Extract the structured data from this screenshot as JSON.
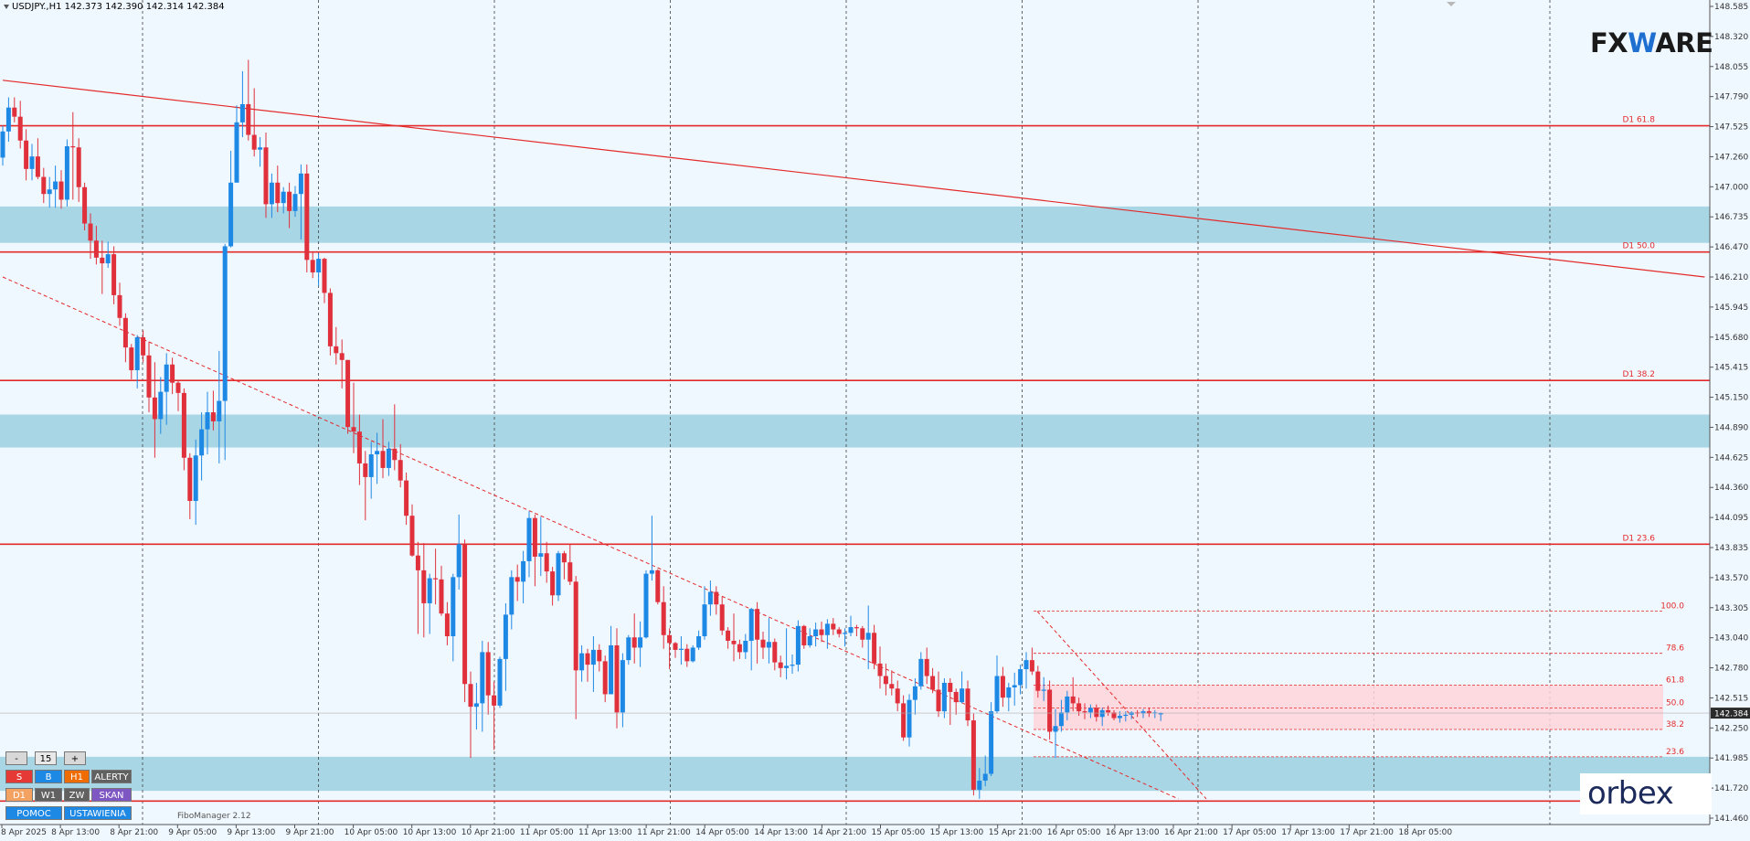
{
  "header": {
    "title": "USDJPY.,H1  142.373 142.390 142.314 142.384"
  },
  "branding": {
    "logo_left": "FX",
    "logo_w": "W",
    "logo_right": "ARE",
    "orbex": "orbex"
  },
  "indicator_label": "FiboManager 2.12",
  "controls": {
    "minus": "-",
    "value": "15",
    "plus": "+",
    "s": "S",
    "b": "B",
    "h1": "H1",
    "alerty": "ALERTY",
    "d1": "D1",
    "w1": "W1",
    "zw": "ZW",
    "skan": "SKAN",
    "pomoc": "POMOC",
    "ustawienia": "USTAWIENIA"
  },
  "colors": {
    "background": "#f0f8ff",
    "bull": "#1e88e5",
    "bear": "#e0303c",
    "zone": "#a9d6e5",
    "level": "#e32a2a",
    "fib_zone": "#ffd4da",
    "grid": "#404040"
  },
  "chart_data": {
    "type": "candlestick",
    "symbol": "USDJPY.",
    "timeframe": "H1",
    "ylim": [
      141.46,
      148.6
    ],
    "y_ticks": [
      "148.585",
      "148.320",
      "148.055",
      "147.790",
      "147.525",
      "147.260",
      "147.000",
      "146.735",
      "146.470",
      "146.210",
      "145.945",
      "145.680",
      "145.415",
      "145.150",
      "144.890",
      "144.625",
      "144.360",
      "144.095",
      "143.835",
      "143.570",
      "143.305",
      "143.040",
      "142.780",
      "142.515",
      "142.250",
      "141.985",
      "141.720",
      "141.460"
    ],
    "x_labels": [
      "8 Apr 2025",
      "8 Apr 13:00",
      "8 Apr 21:00",
      "9 Apr 05:00",
      "9 Apr 13:00",
      "9 Apr 21:00",
      "10 Apr 05:00",
      "10 Apr 13:00",
      "10 Apr 21:00",
      "11 Apr 05:00",
      "11 Apr 13:00",
      "11 Apr 21:00",
      "14 Apr 05:00",
      "14 Apr 13:00",
      "14 Apr 21:00",
      "15 Apr 05:00",
      "15 Apr 13:00",
      "15 Apr 21:00",
      "16 Apr 05:00",
      "16 Apr 13:00",
      "16 Apr 21:00",
      "17 Apr 05:00",
      "17 Apr 13:00",
      "17 Apr 21:00",
      "18 Apr 05:00"
    ],
    "current_price": "142.384",
    "d1_levels": [
      {
        "label": "D1 61.8",
        "price": 147.55
      },
      {
        "label": "D1 50.0",
        "price": 146.44
      },
      {
        "label": "D1 38.2",
        "price": 145.31
      },
      {
        "label": "D1 23.6",
        "price": 143.87
      },
      {
        "label": "",
        "price": 141.61
      }
    ],
    "support_zones": [
      {
        "from": 146.52,
        "to": 146.84
      },
      {
        "from": 144.72,
        "to": 145.01
      },
      {
        "from": 141.7,
        "to": 142.0
      }
    ],
    "fib_retracement": [
      {
        "label": "100.0",
        "price": 143.28
      },
      {
        "label": "78.6",
        "price": 142.91
      },
      {
        "label": "61.8",
        "price": 142.63
      },
      {
        "label": "50.0",
        "price": 142.43
      },
      {
        "label": "38.2",
        "price": 142.24
      },
      {
        "label": "23.6",
        "price": 142.0
      }
    ],
    "trendlines": [
      {
        "style": "solid",
        "from": [
          0,
          147.95
        ],
        "to": [
          291,
          146.22
        ]
      },
      {
        "style": "dashed",
        "from": [
          0,
          146.22
        ],
        "to": [
          201,
          141.63
        ]
      }
    ],
    "candles": [
      [
        147.27,
        147.55,
        147.2,
        147.5
      ],
      [
        147.5,
        147.8,
        147.41,
        147.71
      ],
      [
        147.71,
        147.8,
        147.58,
        147.63
      ],
      [
        147.63,
        147.77,
        147.35,
        147.42
      ],
      [
        147.42,
        147.52,
        147.07,
        147.17
      ],
      [
        147.17,
        147.39,
        147.07,
        147.28
      ],
      [
        147.28,
        147.44,
        147.08,
        147.1
      ],
      [
        147.1,
        147.18,
        146.87,
        146.95
      ],
      [
        146.95,
        147.1,
        146.83,
        146.99
      ],
      [
        146.99,
        147.2,
        146.83,
        147.06
      ],
      [
        147.06,
        147.16,
        146.82,
        146.9
      ],
      [
        146.9,
        147.43,
        146.84,
        147.37
      ],
      [
        147.37,
        147.67,
        146.9,
        147.36
      ],
      [
        147.36,
        147.44,
        146.88,
        147.01
      ],
      [
        147.01,
        147.05,
        146.63,
        146.69
      ],
      [
        146.69,
        146.78,
        146.38,
        146.54
      ],
      [
        146.54,
        146.67,
        146.33,
        146.39
      ],
      [
        146.39,
        146.54,
        146.07,
        146.34
      ],
      [
        146.34,
        146.53,
        146.3,
        146.42
      ],
      [
        146.42,
        146.49,
        145.98,
        146.06
      ],
      [
        146.06,
        146.17,
        145.79,
        145.86
      ],
      [
        145.86,
        145.9,
        145.47,
        145.6
      ],
      [
        145.6,
        145.63,
        145.32,
        145.4
      ],
      [
        145.4,
        145.71,
        145.24,
        145.69
      ],
      [
        145.69,
        145.75,
        145.47,
        145.53
      ],
      [
        145.53,
        145.65,
        145.03,
        145.16
      ],
      [
        145.16,
        145.47,
        144.63,
        144.97
      ],
      [
        144.97,
        145.34,
        144.84,
        145.21
      ],
      [
        145.21,
        145.55,
        144.92,
        145.45
      ],
      [
        145.45,
        145.51,
        145.19,
        145.29
      ],
      [
        145.29,
        145.31,
        145.04,
        145.2
      ],
      [
        145.2,
        145.24,
        144.52,
        144.63
      ],
      [
        144.63,
        144.67,
        144.09,
        144.25
      ],
      [
        144.25,
        144.79,
        144.04,
        144.65
      ],
      [
        144.65,
        145.03,
        144.43,
        144.88
      ],
      [
        144.88,
        145.21,
        144.66,
        145.03
      ],
      [
        145.03,
        145.22,
        144.87,
        144.95
      ],
      [
        144.95,
        145.57,
        144.58,
        145.13
      ],
      [
        145.13,
        146.51,
        144.61,
        146.49
      ],
      [
        146.49,
        147.33,
        146.48,
        147.05
      ],
      [
        147.05,
        147.73,
        147.05,
        147.58
      ],
      [
        147.58,
        148.03,
        147.45,
        147.74
      ],
      [
        147.74,
        148.13,
        147.42,
        147.47
      ],
      [
        147.47,
        147.88,
        147.28,
        147.34
      ],
      [
        147.34,
        147.45,
        147.19,
        147.36
      ],
      [
        147.36,
        147.49,
        146.74,
        146.86
      ],
      [
        146.86,
        147.13,
        146.74,
        147.05
      ],
      [
        147.05,
        147.2,
        146.79,
        146.87
      ],
      [
        146.87,
        147.01,
        146.78,
        146.97
      ],
      [
        146.97,
        147.05,
        146.65,
        146.8
      ],
      [
        146.8,
        147.02,
        146.75,
        146.95
      ],
      [
        146.95,
        147.21,
        146.55,
        147.13
      ],
      [
        147.13,
        147.21,
        146.26,
        146.37
      ],
      [
        146.37,
        146.44,
        146.21,
        146.26
      ],
      [
        146.26,
        146.43,
        146.14,
        146.38
      ],
      [
        146.38,
        146.39,
        145.99,
        146.08
      ],
      [
        146.08,
        146.12,
        145.53,
        145.61
      ],
      [
        145.61,
        145.78,
        145.45,
        145.55
      ],
      [
        145.55,
        145.67,
        145.24,
        145.49
      ],
      [
        145.49,
        145.49,
        144.84,
        144.9
      ],
      [
        144.9,
        145.29,
        144.67,
        144.86
      ],
      [
        144.86,
        145.01,
        144.39,
        144.58
      ],
      [
        144.58,
        144.69,
        144.08,
        144.46
      ],
      [
        144.46,
        144.77,
        144.27,
        144.66
      ],
      [
        144.66,
        144.85,
        144.4,
        144.69
      ],
      [
        144.69,
        144.97,
        144.45,
        144.54
      ],
      [
        144.54,
        144.77,
        144.47,
        144.71
      ],
      [
        144.71,
        145.1,
        144.52,
        144.61
      ],
      [
        144.61,
        144.75,
        144.37,
        144.43
      ],
      [
        144.43,
        144.5,
        144.04,
        144.12
      ],
      [
        144.12,
        144.22,
        143.76,
        143.77
      ],
      [
        143.77,
        143.89,
        143.08,
        143.64
      ],
      [
        143.64,
        143.88,
        143.05,
        143.35
      ],
      [
        143.35,
        143.61,
        143.08,
        143.57
      ],
      [
        143.57,
        143.83,
        143.34,
        143.56
      ],
      [
        143.56,
        143.68,
        143.24,
        143.26
      ],
      [
        143.26,
        143.36,
        142.98,
        143.06
      ],
      [
        143.06,
        143.61,
        142.84,
        143.58
      ],
      [
        143.58,
        144.13,
        143.47,
        143.87
      ],
      [
        143.87,
        143.91,
        142.48,
        142.64
      ],
      [
        142.64,
        142.75,
        141.99,
        142.44
      ],
      [
        142.44,
        142.65,
        142.24,
        142.47
      ],
      [
        142.47,
        143.02,
        142.22,
        142.92
      ],
      [
        142.92,
        143.01,
        142.37,
        142.54
      ],
      [
        142.54,
        142.66,
        142.06,
        142.45
      ],
      [
        142.45,
        142.88,
        142.43,
        142.86
      ],
      [
        142.86,
        143.35,
        142.58,
        143.25
      ],
      [
        143.25,
        143.64,
        143.12,
        143.58
      ],
      [
        143.58,
        143.69,
        143.37,
        143.54
      ],
      [
        143.54,
        143.81,
        143.35,
        143.72
      ],
      [
        143.72,
        144.16,
        143.58,
        144.1
      ],
      [
        144.1,
        144.13,
        143.5,
        143.76
      ],
      [
        143.76,
        144.11,
        143.59,
        143.79
      ],
      [
        143.79,
        143.89,
        143.53,
        143.63
      ],
      [
        143.63,
        143.67,
        143.33,
        143.42
      ],
      [
        143.42,
        143.81,
        143.37,
        143.79
      ],
      [
        143.79,
        143.81,
        143.56,
        143.71
      ],
      [
        143.71,
        143.87,
        143.51,
        143.54
      ],
      [
        143.54,
        143.59,
        142.33,
        142.76
      ],
      [
        142.76,
        142.98,
        142.66,
        142.91
      ],
      [
        142.91,
        142.95,
        142.66,
        142.81
      ],
      [
        142.81,
        143.06,
        142.57,
        142.94
      ],
      [
        142.94,
        142.99,
        142.75,
        142.84
      ],
      [
        142.84,
        142.89,
        142.48,
        142.55
      ],
      [
        142.55,
        143.15,
        142.55,
        142.98
      ],
      [
        142.98,
        143.13,
        142.25,
        142.39
      ],
      [
        142.39,
        142.91,
        142.26,
        142.85
      ],
      [
        142.85,
        143.07,
        142.81,
        143.05
      ],
      [
        143.05,
        143.26,
        142.82,
        142.96
      ],
      [
        142.96,
        143.19,
        142.79,
        143.05
      ],
      [
        143.05,
        143.64,
        143.04,
        143.61
      ],
      [
        143.61,
        144.12,
        143.55,
        143.64
      ],
      [
        143.64,
        143.65,
        143.34,
        143.36
      ],
      [
        143.36,
        143.5,
        142.95,
        143.07
      ],
      [
        143.07,
        143.13,
        142.77,
        143.0
      ],
      [
        143.0,
        143.01,
        142.87,
        142.94
      ],
      [
        142.94,
        143.06,
        142.81,
        142.95
      ],
      [
        142.95,
        142.99,
        142.79,
        142.84
      ],
      [
        142.84,
        142.98,
        142.83,
        142.96
      ],
      [
        142.96,
        143.11,
        142.94,
        143.06
      ],
      [
        143.06,
        143.5,
        143.03,
        143.34
      ],
      [
        143.34,
        143.55,
        143.24,
        143.45
      ],
      [
        143.45,
        143.5,
        143.25,
        143.34
      ],
      [
        143.34,
        143.41,
        143.07,
        143.11
      ],
      [
        143.11,
        143.14,
        142.95,
        143.02
      ],
      [
        143.02,
        143.26,
        142.84,
        142.99
      ],
      [
        142.99,
        143.03,
        142.86,
        142.92
      ],
      [
        142.92,
        143.08,
        142.86,
        143.02
      ],
      [
        143.02,
        143.31,
        142.76,
        143.3
      ],
      [
        143.3,
        143.36,
        142.82,
        143.03
      ],
      [
        143.03,
        143.1,
        142.86,
        142.96
      ],
      [
        142.96,
        143.22,
        142.82,
        143.01
      ],
      [
        143.01,
        143.04,
        142.76,
        142.83
      ],
      [
        142.83,
        142.89,
        142.7,
        142.78
      ],
      [
        142.78,
        143.13,
        142.68,
        142.8
      ],
      [
        142.8,
        142.9,
        142.73,
        142.81
      ],
      [
        142.81,
        143.2,
        142.75,
        143.15
      ],
      [
        143.15,
        143.16,
        142.95,
        142.98
      ],
      [
        142.98,
        143.13,
        142.96,
        143.06
      ],
      [
        143.06,
        143.18,
        142.97,
        143.12
      ],
      [
        143.12,
        143.19,
        143.01,
        143.07
      ],
      [
        143.07,
        143.21,
        142.95,
        143.17
      ],
      [
        143.17,
        143.22,
        143.07,
        143.12
      ],
      [
        143.12,
        143.14,
        143.05,
        143.08
      ],
      [
        143.08,
        143.13,
        142.97,
        143.09
      ],
      [
        143.09,
        143.24,
        143.06,
        143.14
      ],
      [
        143.14,
        143.16,
        143.06,
        143.13
      ],
      [
        143.13,
        143.15,
        142.96,
        143.03
      ],
      [
        143.03,
        143.33,
        142.77,
        143.09
      ],
      [
        143.09,
        143.16,
        142.77,
        142.82
      ],
      [
        142.82,
        142.97,
        142.6,
        142.71
      ],
      [
        142.71,
        142.82,
        142.54,
        142.64
      ],
      [
        142.64,
        142.76,
        142.54,
        142.6
      ],
      [
        142.6,
        142.67,
        142.4,
        142.47
      ],
      [
        142.47,
        142.54,
        142.14,
        142.17
      ],
      [
        142.17,
        142.55,
        142.09,
        142.5
      ],
      [
        142.5,
        142.69,
        142.37,
        142.62
      ],
      [
        142.62,
        142.92,
        142.59,
        142.86
      ],
      [
        142.86,
        142.96,
        142.64,
        142.71
      ],
      [
        142.71,
        142.78,
        142.56,
        142.59
      ],
      [
        142.59,
        142.75,
        142.35,
        142.4
      ],
      [
        142.4,
        142.69,
        142.34,
        142.65
      ],
      [
        142.65,
        142.69,
        142.28,
        142.57
      ],
      [
        142.57,
        142.6,
        142.37,
        142.48
      ],
      [
        142.48,
        142.75,
        142.47,
        142.6
      ],
      [
        142.6,
        142.67,
        142.27,
        142.32
      ],
      [
        142.32,
        142.38,
        141.66,
        141.71
      ],
      [
        141.71,
        141.9,
        141.63,
        141.79
      ],
      [
        141.79,
        142.01,
        141.74,
        141.85
      ],
      [
        141.85,
        142.48,
        141.83,
        142.4
      ],
      [
        142.4,
        142.89,
        142.38,
        142.71
      ],
      [
        142.71,
        142.79,
        142.44,
        142.52
      ],
      [
        142.52,
        142.65,
        142.4,
        142.61
      ],
      [
        142.61,
        142.74,
        142.45,
        142.63
      ],
      [
        142.63,
        142.81,
        142.55,
        142.77
      ],
      [
        142.77,
        142.92,
        142.6,
        142.85
      ],
      [
        142.85,
        142.96,
        142.72,
        142.75
      ],
      [
        142.75,
        142.8,
        142.52,
        142.58
      ],
      [
        142.58,
        142.7,
        142.49,
        142.59
      ],
      [
        142.59,
        142.67,
        142.15,
        142.22
      ],
      [
        142.22,
        142.42,
        141.99,
        142.27
      ],
      [
        142.27,
        142.5,
        142.22,
        142.39
      ],
      [
        142.39,
        142.58,
        142.32,
        142.53
      ],
      [
        142.53,
        142.7,
        142.4,
        142.47
      ],
      [
        142.47,
        142.52,
        142.36,
        142.4
      ],
      [
        142.4,
        142.47,
        142.33,
        142.39
      ],
      [
        142.39,
        142.46,
        142.34,
        142.43
      ],
      [
        142.43,
        142.46,
        142.31,
        142.35
      ],
      [
        142.35,
        142.43,
        142.27,
        142.41
      ],
      [
        142.41,
        142.45,
        142.36,
        142.39
      ],
      [
        142.39,
        142.41,
        142.32,
        142.34
      ],
      [
        142.34,
        142.4,
        142.3,
        142.36
      ],
      [
        142.36,
        142.4,
        142.31,
        142.37
      ],
      [
        142.37,
        142.4,
        142.33,
        142.39
      ],
      [
        142.39,
        142.41,
        142.35,
        142.38
      ],
      [
        142.38,
        142.42,
        142.34,
        142.4
      ],
      [
        142.4,
        142.43,
        142.35,
        142.38
      ],
      [
        142.38,
        142.41,
        142.34,
        142.39
      ],
      [
        142.373,
        142.39,
        142.314,
        142.384
      ]
    ]
  }
}
